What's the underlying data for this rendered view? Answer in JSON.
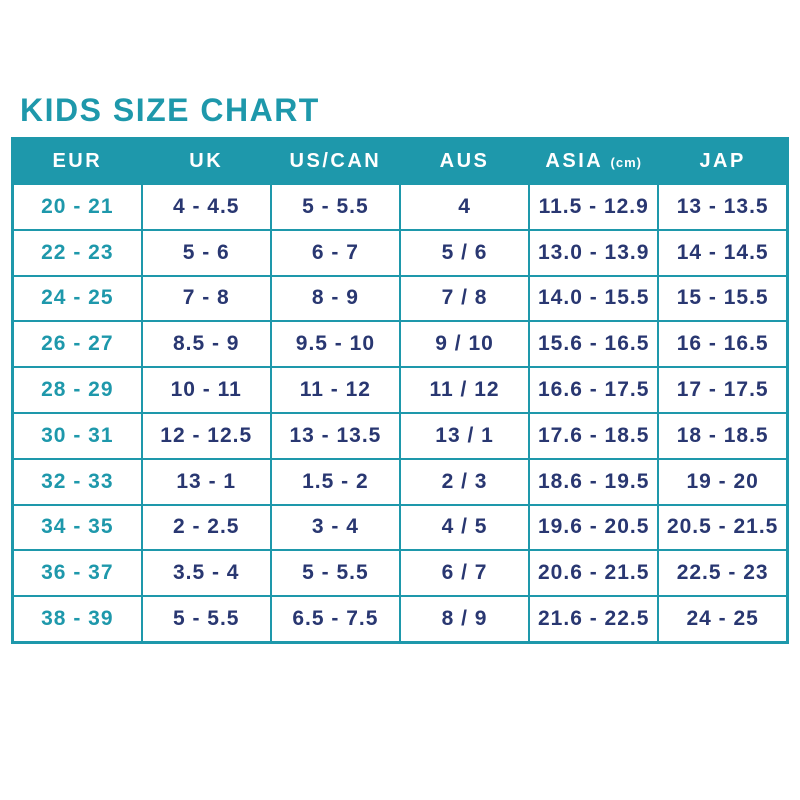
{
  "title": "KIDS SIZE CHART",
  "colors": {
    "teal_accent": "#1e98ab",
    "navy_text": "#293771",
    "background": "#ffffff",
    "header_text": "#ffffff"
  },
  "table": {
    "headers": [
      {
        "label": "EUR"
      },
      {
        "label": "UK"
      },
      {
        "label": "US/CAN"
      },
      {
        "label": "AUS"
      },
      {
        "label": "ASIA",
        "unit": "(cm)"
      },
      {
        "label": "JAP"
      }
    ],
    "rows": [
      {
        "cells": [
          "20 - 21",
          "4 - 4.5",
          "5 - 5.5",
          "4",
          "11.5 - 12.9",
          "13 - 13.5"
        ]
      },
      {
        "cells": [
          "22 - 23",
          "5 - 6",
          "6 - 7",
          "5 / 6",
          "13.0 - 13.9",
          "14 - 14.5"
        ]
      },
      {
        "cells": [
          "24 - 25",
          "7 - 8",
          "8 - 9",
          "7 / 8",
          "14.0 - 15.5",
          "15 - 15.5"
        ]
      },
      {
        "cells": [
          "26 - 27",
          "8.5 - 9",
          "9.5 - 10",
          "9 / 10",
          "15.6 - 16.5",
          "16 - 16.5"
        ]
      },
      {
        "cells": [
          "28 - 29",
          "10 - 11",
          "11 - 12",
          "11 / 12",
          "16.6 - 17.5",
          "17 - 17.5"
        ]
      },
      {
        "cells": [
          "30 - 31",
          "12 - 12.5",
          "13 - 13.5",
          "13 / 1",
          "17.6 - 18.5",
          "18 - 18.5"
        ]
      },
      {
        "cells": [
          "32 - 33",
          "13 - 1",
          "1.5 - 2",
          "2 / 3",
          "18.6 - 19.5",
          "19 - 20"
        ]
      },
      {
        "cells": [
          "34 - 35",
          "2 - 2.5",
          "3 - 4",
          "4 / 5",
          "19.6 - 20.5",
          "20.5 - 21.5"
        ]
      },
      {
        "cells": [
          "36 - 37",
          "3.5 - 4",
          "5 - 5.5",
          "6 / 7",
          "20.6 - 21.5",
          "22.5 - 23"
        ]
      },
      {
        "cells": [
          "38 - 39",
          "5 - 5.5",
          "6.5 - 7.5",
          "8 / 9",
          "21.6 - 22.5",
          "24 - 25"
        ]
      }
    ]
  },
  "chart_data": {
    "type": "table",
    "title": "KIDS SIZE CHART",
    "columns": [
      "EUR",
      "UK",
      "US/CAN",
      "AUS",
      "ASIA (cm)",
      "JAP"
    ],
    "rows": [
      [
        "20 - 21",
        "4 - 4.5",
        "5 - 5.5",
        "4",
        "11.5 - 12.9",
        "13 - 13.5"
      ],
      [
        "22 - 23",
        "5 - 6",
        "6 - 7",
        "5 / 6",
        "13.0 - 13.9",
        "14 - 14.5"
      ],
      [
        "24 - 25",
        "7 - 8",
        "8 - 9",
        "7 / 8",
        "14.0 - 15.5",
        "15 - 15.5"
      ],
      [
        "26 - 27",
        "8.5 - 9",
        "9.5 - 10",
        "9 / 10",
        "15.6 - 16.5",
        "16 - 16.5"
      ],
      [
        "28 - 29",
        "10 - 11",
        "11 - 12",
        "11 / 12",
        "16.6 - 17.5",
        "17 - 17.5"
      ],
      [
        "30 - 31",
        "12 - 12.5",
        "13 - 13.5",
        "13 / 1",
        "17.6 - 18.5",
        "18 - 18.5"
      ],
      [
        "32 - 33",
        "13 - 1",
        "1.5 - 2",
        "2 / 3",
        "18.6 - 19.5",
        "19 - 20"
      ],
      [
        "34 - 35",
        "2 - 2.5",
        "3 - 4",
        "4 / 5",
        "19.6 - 20.5",
        "20.5 - 21.5"
      ],
      [
        "36 - 37",
        "3.5 - 4",
        "5 - 5.5",
        "6 / 7",
        "20.6 - 21.5",
        "22.5 - 23"
      ],
      [
        "38 - 39",
        "5 - 5.5",
        "6.5 - 7.5",
        "8 / 9",
        "21.6 - 22.5",
        "24 - 25"
      ]
    ]
  }
}
